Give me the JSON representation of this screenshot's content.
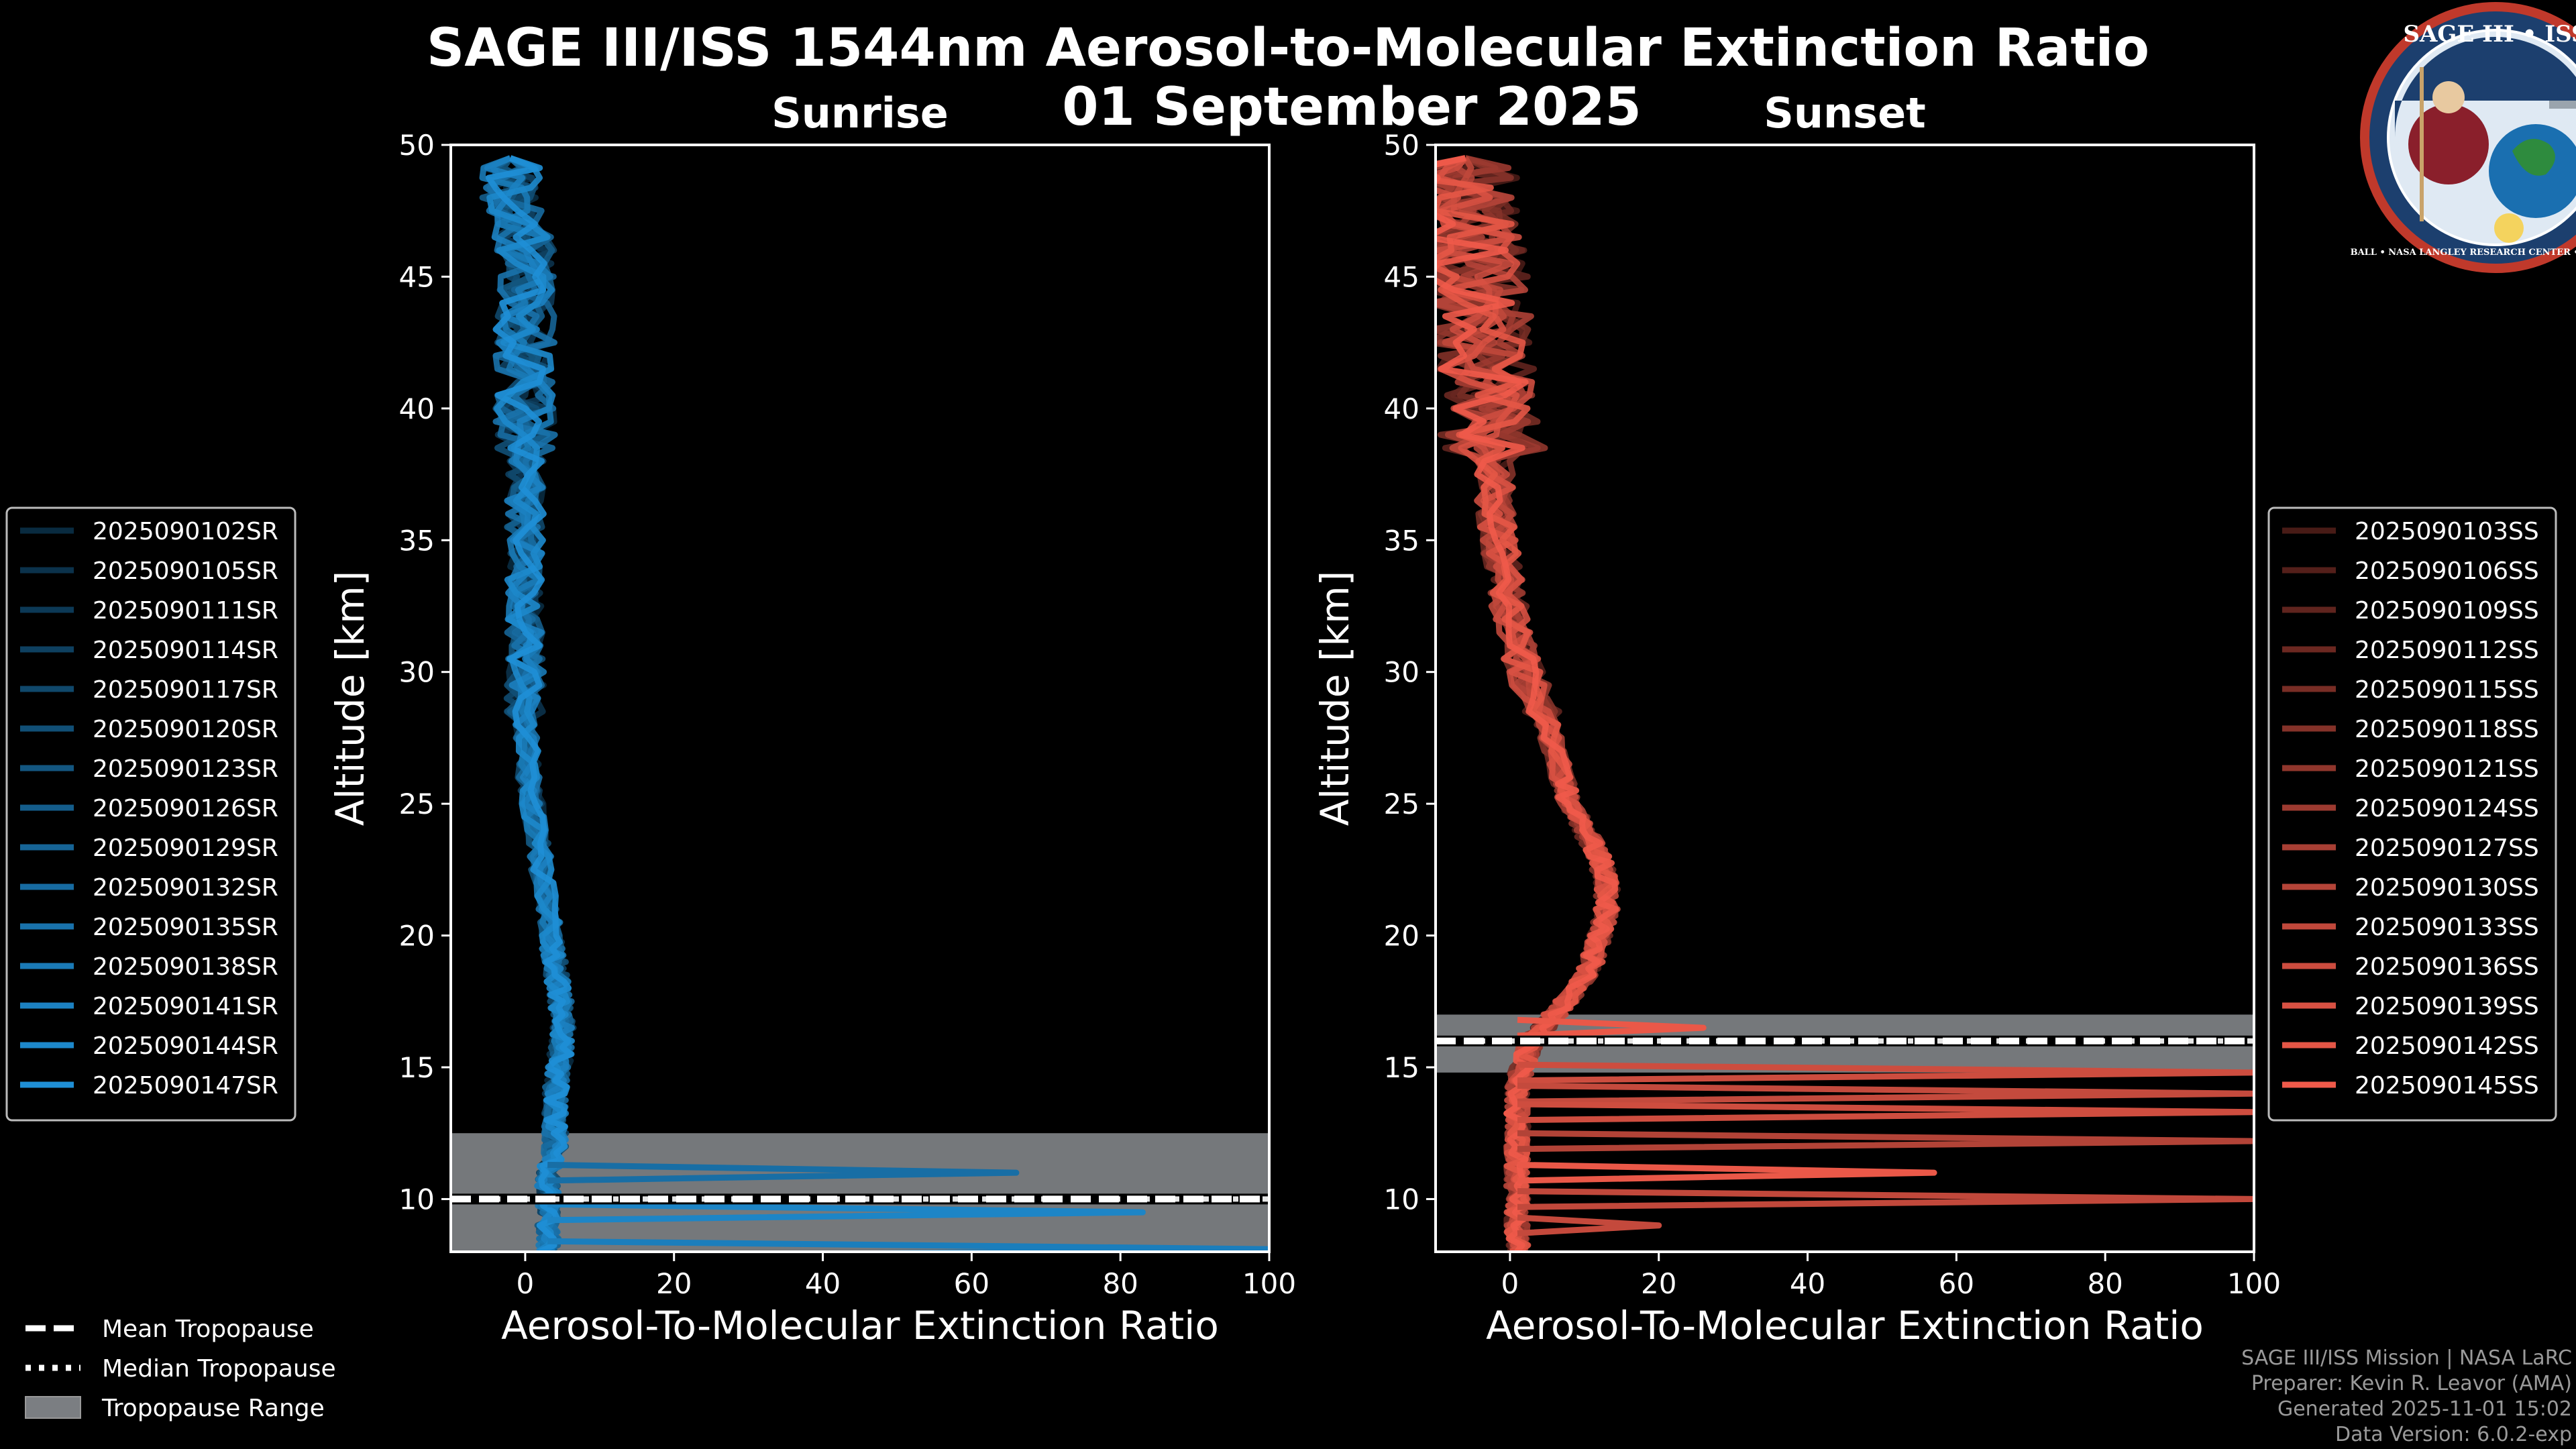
{
  "title": "SAGE III/ISS 1544nm Aerosol-to-Molecular Extinction Ratio",
  "date_label": "01 September 2025",
  "logo": {
    "text": "SAGE III • ISS",
    "ring_text": "BALL • NASA LANGLEY RESEARCH CENTER • TAS-I • ESA"
  },
  "credits": [
    "SAGE III/ISS Mission | NASA LaRC",
    "Preparer: Kevin R. Leavor (AMA)",
    "Generated 2025-11-01 15:02",
    "Data Version: 6.0.2-exp"
  ],
  "tropopause_legend": [
    {
      "label": "Mean Tropopause",
      "style": "dashed"
    },
    {
      "label": "Median Tropopause",
      "style": "dotted"
    },
    {
      "label": "Tropopause Range",
      "style": "range"
    }
  ],
  "colors": {
    "sunrise": "#1f8fd6",
    "sunset": "#f05a4a",
    "range": "#7b7e82",
    "background": "#000000"
  },
  "chart_data": [
    {
      "type": "line",
      "panel": "sunrise",
      "subtitle": "Sunrise",
      "xlabel": "Aerosol-To-Molecular Extinction Ratio",
      "ylabel": "Altitude [km]",
      "xlim": [
        -10,
        100
      ],
      "ylim": [
        8,
        50
      ],
      "xticks": [
        0,
        20,
        40,
        60,
        80,
        100
      ],
      "yticks": [
        10,
        15,
        20,
        25,
        30,
        35,
        40,
        45,
        50
      ],
      "tropopause": {
        "mean_km": 10.0,
        "median_km": 10.0,
        "range_km": [
          8.0,
          12.5
        ]
      },
      "series_names": [
        "2025090102SR",
        "2025090105SR",
        "2025090111SR",
        "2025090114SR",
        "2025090117SR",
        "2025090120SR",
        "2025090123SR",
        "2025090126SR",
        "2025090129SR",
        "2025090132SR",
        "2025090135SR",
        "2025090138SR",
        "2025090141SR",
        "2025090144SR",
        "2025090147SR"
      ],
      "profile_altitudes_km": [
        8,
        9,
        10,
        11,
        12,
        13,
        14,
        15,
        16,
        17,
        18,
        19,
        20,
        22,
        24,
        26,
        28,
        30,
        32,
        34,
        36,
        38,
        40,
        42,
        44,
        46,
        48,
        49.5
      ],
      "profile_ratios": [
        3,
        3,
        3,
        3,
        4,
        4,
        4,
        4.5,
        5,
        5,
        4.5,
        4,
        3.5,
        2.5,
        1.5,
        0.5,
        0,
        0,
        0,
        0,
        0,
        0,
        0,
        0,
        0,
        0,
        -2,
        -2
      ],
      "outliers": [
        {
          "altitude_km": 11.0,
          "ratio": 66
        },
        {
          "altitude_km": 9.5,
          "ratio": 83
        },
        {
          "altitude_km": 8.1,
          "ratio": 100
        }
      ]
    },
    {
      "type": "line",
      "panel": "sunset",
      "subtitle": "Sunset",
      "xlabel": "Aerosol-To-Molecular Extinction Ratio",
      "ylabel": "Altitude [km]",
      "xlim": [
        -10,
        100
      ],
      "ylim": [
        8,
        50
      ],
      "xticks": [
        0,
        20,
        40,
        60,
        80,
        100
      ],
      "yticks": [
        10,
        15,
        20,
        25,
        30,
        35,
        40,
        45,
        50
      ],
      "tropopause": {
        "mean_km": 16.0,
        "median_km": 16.0,
        "range_km": [
          14.8,
          17.0
        ]
      },
      "series_names": [
        "2025090103SS",
        "2025090106SS",
        "2025090109SS",
        "2025090112SS",
        "2025090115SS",
        "2025090118SS",
        "2025090121SS",
        "2025090124SS",
        "2025090127SS",
        "2025090130SS",
        "2025090133SS",
        "2025090136SS",
        "2025090139SS",
        "2025090142SS",
        "2025090145SS"
      ],
      "profile_altitudes_km": [
        8,
        9,
        10,
        11,
        12,
        13,
        14,
        15,
        16,
        17,
        18,
        19,
        20,
        21,
        22,
        23,
        24,
        25,
        26,
        28,
        30,
        32,
        34,
        36,
        38,
        40,
        42,
        44,
        46,
        48,
        49.5
      ],
      "profile_ratios": [
        1,
        1,
        1,
        1,
        1,
        1,
        1,
        1.5,
        3,
        6,
        9,
        11,
        12,
        13,
        13,
        12,
        10,
        8,
        7,
        5,
        2,
        0,
        -1,
        -2,
        -2,
        -3,
        -4,
        -4,
        -5,
        -6,
        -6
      ],
      "outliers": [
        {
          "altitude_km": 16.5,
          "ratio": 26
        },
        {
          "altitude_km": 14.8,
          "ratio": 100
        },
        {
          "altitude_km": 14.0,
          "ratio": 100
        },
        {
          "altitude_km": 13.3,
          "ratio": 100
        },
        {
          "altitude_km": 12.2,
          "ratio": 100
        },
        {
          "altitude_km": 11.0,
          "ratio": 57
        },
        {
          "altitude_km": 10.0,
          "ratio": 100
        },
        {
          "altitude_km": 9.0,
          "ratio": 20
        }
      ]
    }
  ]
}
